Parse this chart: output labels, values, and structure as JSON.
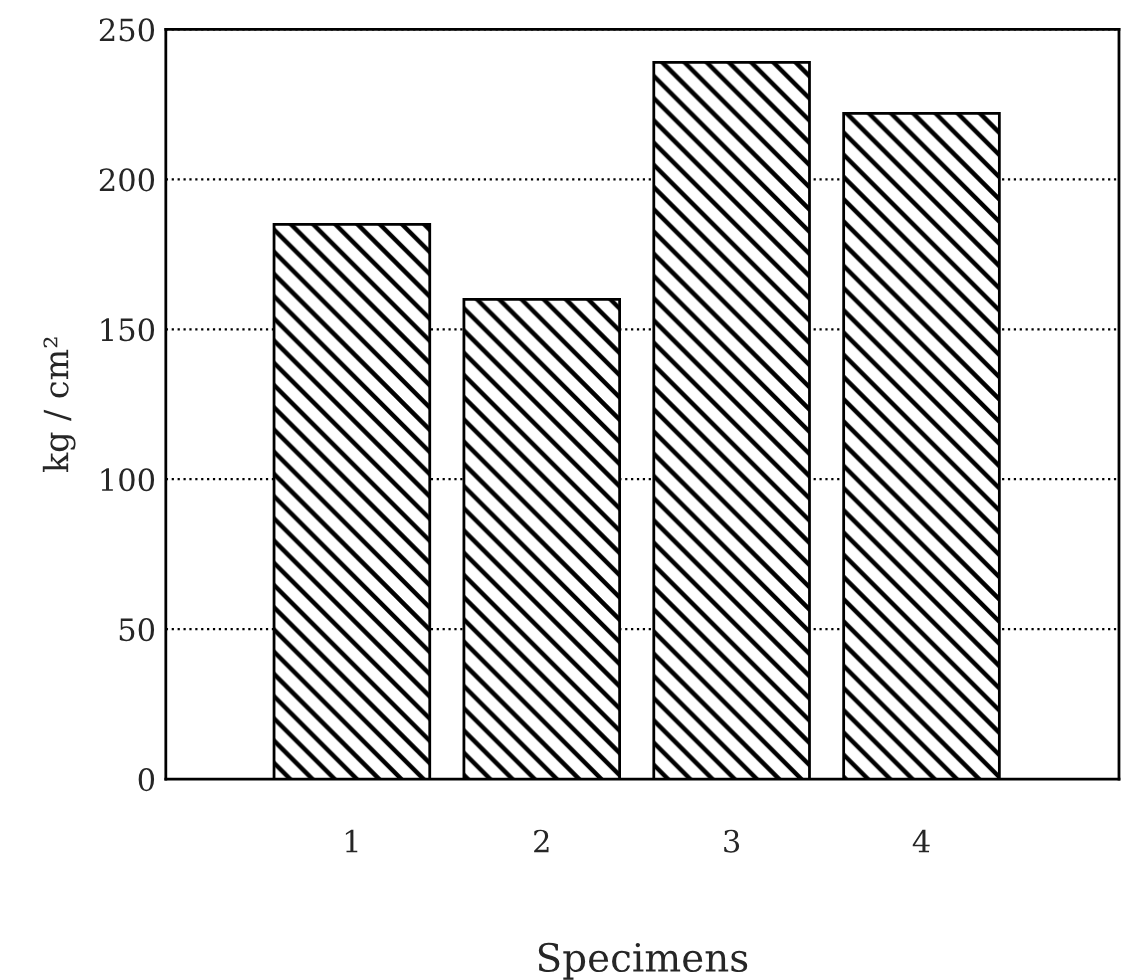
{
  "chart_data": {
    "type": "bar",
    "xlabel": "Specimens",
    "ylabel": "kg / cm²",
    "categories": [
      "1",
      "2",
      "3",
      "4"
    ],
    "values": [
      185,
      160,
      239,
      222
    ],
    "color": "#000000",
    "ylim": [
      0,
      250
    ],
    "yticks": [
      0,
      50,
      100,
      150,
      200,
      250
    ],
    "grid": "y"
  }
}
